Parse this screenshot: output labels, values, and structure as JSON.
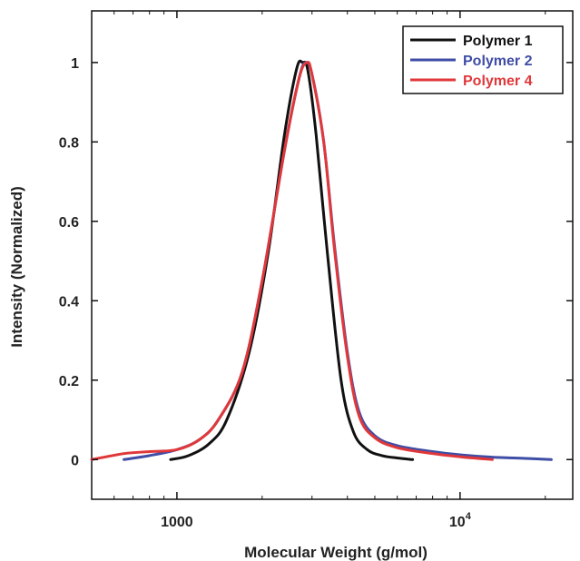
{
  "chart_data": {
    "type": "line",
    "title": "",
    "xlabel": "Molecular Weight (g/mol)",
    "ylabel": "Intensity (Normalized)",
    "xscale": "log",
    "xlim": [
      500,
      25000
    ],
    "ylim": [
      -0.1,
      1.13
    ],
    "x_ticks": [
      {
        "value": 1000,
        "label": "1000",
        "exp": ""
      },
      {
        "value": 10000,
        "label": "10",
        "exp": "4"
      }
    ],
    "y_ticks": [
      {
        "value": 0,
        "label": "0"
      },
      {
        "value": 0.2,
        "label": "0.2"
      },
      {
        "value": 0.4,
        "label": "0.4"
      },
      {
        "value": 0.6,
        "label": "0.6"
      },
      {
        "value": 0.8,
        "label": "0.8"
      },
      {
        "value": 1,
        "label": "1"
      }
    ],
    "grid": false,
    "legend_position": "top-right",
    "series": [
      {
        "name": "Polymer 1",
        "color": "#111111",
        "x": [
          950,
          1100,
          1300,
          1500,
          1800,
          2100,
          2400,
          2650,
          2780,
          2900,
          3100,
          3400,
          3800,
          4200,
          4700,
          5300,
          6000,
          6800
        ],
        "y": [
          0.0,
          0.01,
          0.04,
          0.1,
          0.27,
          0.52,
          0.82,
          0.985,
          1.0,
          0.98,
          0.82,
          0.52,
          0.2,
          0.07,
          0.025,
          0.01,
          0.004,
          0.0
        ]
      },
      {
        "name": "Polymer 2",
        "color": "#3f4da6",
        "x": [
          650,
          800,
          1000,
          1200,
          1400,
          1700,
          2000,
          2400,
          2700,
          2850,
          3000,
          3300,
          3600,
          4000,
          4400,
          5000,
          6000,
          8000,
          10000,
          13000,
          17000,
          21000
        ],
        "y": [
          0.0,
          0.01,
          0.025,
          0.05,
          0.1,
          0.22,
          0.45,
          0.78,
          0.96,
          1.0,
          0.97,
          0.8,
          0.54,
          0.27,
          0.12,
          0.06,
          0.035,
          0.02,
          0.012,
          0.006,
          0.003,
          0.0
        ]
      },
      {
        "name": "Polymer 4",
        "color": "#e0383a",
        "x": [
          500,
          650,
          800,
          1000,
          1200,
          1400,
          1700,
          2000,
          2400,
          2700,
          2880,
          3000,
          3300,
          3600,
          4000,
          4400,
          5000,
          6000,
          8000,
          10000,
          13000
        ],
        "y": [
          0.0,
          0.015,
          0.02,
          0.025,
          0.05,
          0.1,
          0.22,
          0.45,
          0.78,
          0.96,
          1.0,
          0.97,
          0.8,
          0.53,
          0.26,
          0.11,
          0.055,
          0.03,
          0.015,
          0.007,
          0.0
        ]
      }
    ]
  }
}
